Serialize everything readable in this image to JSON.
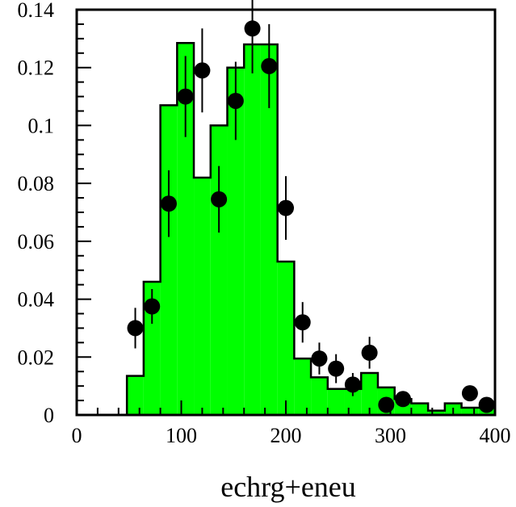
{
  "chart_data": {
    "type": "bar",
    "title": "",
    "xlabel": "echrg+eneu",
    "ylabel": "",
    "xlim": [
      0,
      400
    ],
    "ylim": [
      0,
      0.14
    ],
    "x_ticks": [
      0,
      100,
      200,
      300,
      400
    ],
    "x_tick_labels": [
      "0",
      "100",
      "200",
      "300",
      "400"
    ],
    "y_ticks": [
      0,
      0.02,
      0.04,
      0.06,
      0.08,
      0.1,
      0.12,
      0.14
    ],
    "y_tick_labels": [
      "0",
      "0.02",
      "0.04",
      "0.06",
      "0.08",
      "0.1",
      "0.12",
      "0.14"
    ],
    "grid": false,
    "histogram": {
      "bin_edges": [
        0,
        16,
        32,
        48,
        64,
        80,
        96,
        112,
        128,
        144,
        160,
        176,
        192,
        208,
        224,
        240,
        256,
        272,
        288,
        304,
        320,
        336,
        352,
        368,
        384,
        400
      ],
      "values": [
        0,
        0,
        0,
        0.0135,
        0.046,
        0.107,
        0.1285,
        0.082,
        0.1,
        0.12,
        0.128,
        0.128,
        0.053,
        0.0195,
        0.013,
        0.009,
        0.009,
        0.0145,
        0.0095,
        0.0055,
        0.004,
        0.0015,
        0.004,
        0.0025,
        0.0025
      ],
      "fill_color": "#00ff00",
      "line_color": "#000000"
    },
    "points": [
      {
        "x": 56,
        "y": 0.03,
        "err": 0.007
      },
      {
        "x": 72,
        "y": 0.0375,
        "err": 0.006
      },
      {
        "x": 88,
        "y": 0.073,
        "err": 0.0115
      },
      {
        "x": 104,
        "y": 0.11,
        "err": 0.014
      },
      {
        "x": 120,
        "y": 0.119,
        "err": 0.0145
      },
      {
        "x": 136,
        "y": 0.0745,
        "err": 0.0115
      },
      {
        "x": 152,
        "y": 0.1085,
        "err": 0.0135
      },
      {
        "x": 168,
        "y": 0.1335,
        "err": 0.0155
      },
      {
        "x": 184,
        "y": 0.1205,
        "err": 0.0145
      },
      {
        "x": 200,
        "y": 0.0715,
        "err": 0.011
      },
      {
        "x": 216,
        "y": 0.032,
        "err": 0.007
      },
      {
        "x": 232,
        "y": 0.0195,
        "err": 0.0055
      },
      {
        "x": 248,
        "y": 0.016,
        "err": 0.005
      },
      {
        "x": 264,
        "y": 0.0105,
        "err": 0.004
      },
      {
        "x": 280,
        "y": 0.0215,
        "err": 0.0055
      },
      {
        "x": 296,
        "y": 0.0035,
        "err": 0.002
      },
      {
        "x": 312,
        "y": 0.0055,
        "err": 0.0025
      },
      {
        "x": 376,
        "y": 0.0075,
        "err": 0.0025
      },
      {
        "x": 392,
        "y": 0.0035,
        "err": 0.002
      }
    ],
    "marker_color": "#000000"
  }
}
